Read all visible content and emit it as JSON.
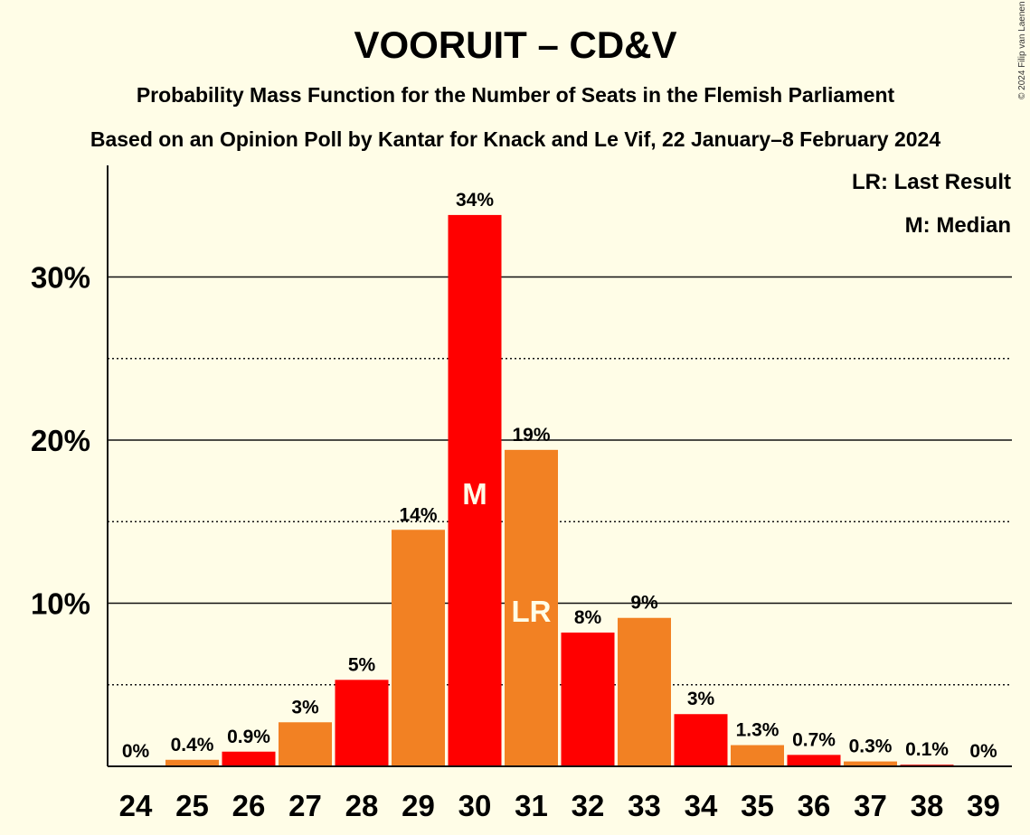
{
  "title": "VOORUIT – CD&V",
  "subtitle1": "Probability Mass Function for the Number of Seats in the Flemish Parliament",
  "subtitle2": "Based on an Opinion Poll by Kantar for Knack and Le Vif, 22 January–8 February 2024",
  "copyright": "© 2024 Filip van Laenen",
  "legend": {
    "lr": "LR: Last Result",
    "m": "M: Median"
  },
  "colors": {
    "background": "#fffde7",
    "red": "#ff0000",
    "orange": "#f28123"
  },
  "chart_data": {
    "type": "bar",
    "categories": [
      "24",
      "25",
      "26",
      "27",
      "28",
      "29",
      "30",
      "31",
      "32",
      "33",
      "34",
      "35",
      "36",
      "37",
      "38",
      "39"
    ],
    "values": [
      0,
      0.4,
      0.9,
      2.7,
      5.3,
      14.5,
      33.8,
      19.4,
      8.2,
      9.1,
      3.2,
      1.3,
      0.7,
      0.3,
      0.1,
      0
    ],
    "labels": [
      "0%",
      "0.4%",
      "0.9%",
      "3%",
      "5%",
      "14%",
      "34%",
      "19%",
      "8%",
      "9%",
      "3%",
      "1.3%",
      "0.7%",
      "0.3%",
      "0.1%",
      "0%"
    ],
    "bar_colors": [
      "red",
      "orange",
      "red",
      "orange",
      "red",
      "orange",
      "red",
      "orange",
      "red",
      "orange",
      "red",
      "orange",
      "red",
      "orange",
      "red",
      "orange"
    ],
    "ylim": [
      0,
      37
    ],
    "yticks": [
      10,
      20,
      30
    ],
    "ytick_labels": [
      "10%",
      "20%",
      "30%"
    ],
    "minor_gridlines": [
      5,
      15,
      25
    ],
    "median": {
      "category": "30",
      "label": "M"
    },
    "last_result": {
      "category": "31",
      "label": "LR"
    }
  }
}
